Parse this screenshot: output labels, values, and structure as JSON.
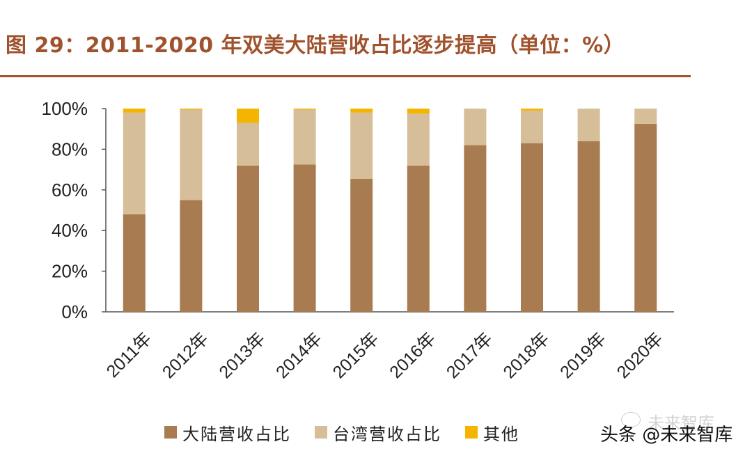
{
  "title": "图 29：2011-2020 年双美大陆营收占比逐步提高（单位：%）",
  "colors": {
    "mainland": "#a87b50",
    "taiwan": "#d6bf98",
    "other": "#f4b400",
    "accent": "#a0522d"
  },
  "chart_data": {
    "type": "bar",
    "stacked": true,
    "categories": [
      "2011年",
      "2012年",
      "2013年",
      "2014年",
      "2015年",
      "2016年",
      "2017年",
      "2018年",
      "2019年",
      "2020年"
    ],
    "series": [
      {
        "name": "大陆营收占比",
        "values": [
          48,
          55,
          72,
          72.5,
          65.5,
          72,
          82,
          83,
          84,
          92.5
        ]
      },
      {
        "name": "台湾营收占比",
        "values": [
          50,
          44.5,
          21,
          27,
          32.5,
          25.5,
          18,
          16,
          16,
          7.5
        ]
      },
      {
        "name": "其他",
        "values": [
          2,
          0.5,
          7,
          0.5,
          2,
          2.5,
          0,
          1,
          0,
          0
        ]
      }
    ],
    "y_ticks": [
      "0%",
      "20%",
      "40%",
      "60%",
      "80%",
      "100%"
    ],
    "ylim": [
      0,
      100
    ],
    "legend_position": "bottom"
  },
  "watermark": {
    "text": "头条 @未来智库",
    "faded_text": "未来智库"
  }
}
